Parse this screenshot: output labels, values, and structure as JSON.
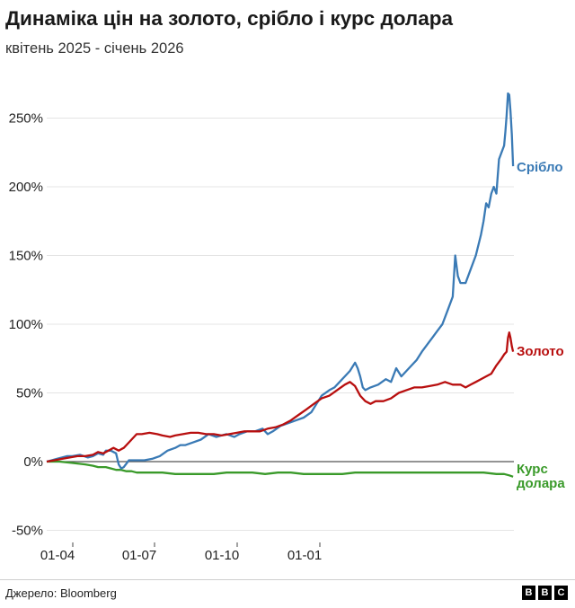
{
  "title": "Динаміка цін на золото, срібло і курс долара",
  "subtitle": "квітень 2025 - січень 2026",
  "source": "Джерело: Bloomberg",
  "brand": [
    "B",
    "B",
    "C"
  ],
  "colors": {
    "silver": "#3a7ab5",
    "gold": "#b80f0f",
    "usd": "#3a9a2a",
    "grid": "#e4e4e4",
    "zero": "#555555"
  },
  "chart_data": {
    "type": "line",
    "ylim": [
      -50,
      270
    ],
    "yticks": [
      -50,
      0,
      50,
      100,
      150,
      200,
      250
    ],
    "ytick_labels": [
      "-50%",
      "0%",
      "50%",
      "100%",
      "150%",
      "200%",
      "250%"
    ],
    "xticks": [
      "01-04",
      "01-07",
      "01-10",
      "01-01"
    ],
    "grid": true,
    "legend": "direct labels at line ends",
    "series": [
      {
        "name": "Срібло",
        "values": [
          [
            0,
            0
          ],
          [
            4,
            1
          ],
          [
            8,
            2
          ],
          [
            12,
            3
          ],
          [
            16,
            4
          ],
          [
            20,
            4
          ],
          [
            26,
            5
          ],
          [
            32,
            3
          ],
          [
            36,
            4
          ],
          [
            40,
            6
          ],
          [
            44,
            5
          ],
          [
            46,
            8
          ],
          [
            50,
            8
          ],
          [
            54,
            6
          ],
          [
            56,
            -2
          ],
          [
            58,
            -5
          ],
          [
            60,
            -4
          ],
          [
            64,
            1
          ],
          [
            70,
            1
          ],
          [
            76,
            1
          ],
          [
            82,
            2
          ],
          [
            88,
            4
          ],
          [
            94,
            8
          ],
          [
            100,
            10
          ],
          [
            104,
            12
          ],
          [
            108,
            12
          ],
          [
            114,
            14
          ],
          [
            120,
            16
          ],
          [
            126,
            20
          ],
          [
            132,
            18
          ],
          [
            136,
            19
          ],
          [
            140,
            20
          ],
          [
            146,
            18
          ],
          [
            150,
            20
          ],
          [
            156,
            22
          ],
          [
            162,
            22
          ],
          [
            168,
            24
          ],
          [
            172,
            20
          ],
          [
            176,
            22
          ],
          [
            182,
            26
          ],
          [
            188,
            28
          ],
          [
            194,
            30
          ],
          [
            200,
            32
          ],
          [
            206,
            36
          ],
          [
            210,
            42
          ],
          [
            214,
            48
          ],
          [
            220,
            52
          ],
          [
            224,
            54
          ],
          [
            228,
            58
          ],
          [
            232,
            62
          ],
          [
            236,
            66
          ],
          [
            240,
            72
          ],
          [
            242,
            68
          ],
          [
            244,
            62
          ],
          [
            246,
            54
          ],
          [
            248,
            52
          ],
          [
            252,
            54
          ],
          [
            258,
            56
          ],
          [
            264,
            60
          ],
          [
            268,
            58
          ],
          [
            272,
            68
          ],
          [
            276,
            62
          ],
          [
            280,
            66
          ],
          [
            284,
            70
          ],
          [
            288,
            74
          ],
          [
            292,
            80
          ],
          [
            296,
            85
          ],
          [
            300,
            90
          ],
          [
            304,
            95
          ],
          [
            308,
            100
          ],
          [
            312,
            110
          ],
          [
            316,
            120
          ],
          [
            318,
            150
          ],
          [
            320,
            135
          ],
          [
            322,
            130
          ],
          [
            326,
            130
          ],
          [
            330,
            140
          ],
          [
            334,
            150
          ],
          [
            338,
            165
          ],
          [
            340,
            175
          ],
          [
            342,
            188
          ],
          [
            344,
            185
          ],
          [
            346,
            195
          ],
          [
            348,
            200
          ],
          [
            350,
            195
          ],
          [
            352,
            220
          ],
          [
            354,
            225
          ],
          [
            356,
            230
          ],
          [
            357,
            240
          ],
          [
            358,
            252
          ],
          [
            359,
            268
          ],
          [
            360,
            267
          ],
          [
            361,
            255
          ],
          [
            362,
            238
          ],
          [
            363,
            215
          ]
        ]
      },
      {
        "name": "Золото",
        "values": [
          [
            0,
            0
          ],
          [
            6,
            1
          ],
          [
            12,
            2
          ],
          [
            18,
            3
          ],
          [
            24,
            4
          ],
          [
            30,
            4
          ],
          [
            36,
            5
          ],
          [
            40,
            7
          ],
          [
            44,
            6
          ],
          [
            48,
            8
          ],
          [
            50,
            9
          ],
          [
            52,
            10
          ],
          [
            54,
            9
          ],
          [
            56,
            8
          ],
          [
            58,
            9
          ],
          [
            60,
            10
          ],
          [
            62,
            12
          ],
          [
            64,
            14
          ],
          [
            66,
            16
          ],
          [
            68,
            18
          ],
          [
            70,
            20
          ],
          [
            74,
            20
          ],
          [
            80,
            21
          ],
          [
            86,
            20
          ],
          [
            90,
            19
          ],
          [
            96,
            18
          ],
          [
            100,
            19
          ],
          [
            106,
            20
          ],
          [
            112,
            21
          ],
          [
            118,
            21
          ],
          [
            124,
            20
          ],
          [
            130,
            20
          ],
          [
            136,
            19
          ],
          [
            142,
            20
          ],
          [
            148,
            21
          ],
          [
            154,
            22
          ],
          [
            160,
            22
          ],
          [
            166,
            22
          ],
          [
            172,
            24
          ],
          [
            178,
            25
          ],
          [
            184,
            27
          ],
          [
            190,
            30
          ],
          [
            196,
            34
          ],
          [
            202,
            38
          ],
          [
            208,
            42
          ],
          [
            214,
            46
          ],
          [
            220,
            48
          ],
          [
            226,
            52
          ],
          [
            232,
            56
          ],
          [
            236,
            58
          ],
          [
            240,
            55
          ],
          [
            244,
            48
          ],
          [
            248,
            44
          ],
          [
            252,
            42
          ],
          [
            256,
            44
          ],
          [
            262,
            44
          ],
          [
            268,
            46
          ],
          [
            274,
            50
          ],
          [
            280,
            52
          ],
          [
            286,
            54
          ],
          [
            292,
            54
          ],
          [
            298,
            55
          ],
          [
            304,
            56
          ],
          [
            310,
            58
          ],
          [
            316,
            56
          ],
          [
            322,
            56
          ],
          [
            326,
            54
          ],
          [
            330,
            56
          ],
          [
            334,
            58
          ],
          [
            338,
            60
          ],
          [
            342,
            62
          ],
          [
            346,
            64
          ],
          [
            350,
            70
          ],
          [
            354,
            75
          ],
          [
            356,
            78
          ],
          [
            358,
            80
          ],
          [
            359,
            90
          ],
          [
            360,
            94
          ],
          [
            361,
            90
          ],
          [
            362,
            84
          ],
          [
            363,
            80
          ]
        ]
      },
      {
        "name": "Курс\nдолара",
        "values": [
          [
            0,
            0
          ],
          [
            10,
            0
          ],
          [
            20,
            -1
          ],
          [
            30,
            -2
          ],
          [
            36,
            -3
          ],
          [
            40,
            -4
          ],
          [
            46,
            -4
          ],
          [
            50,
            -5
          ],
          [
            54,
            -6
          ],
          [
            58,
            -6
          ],
          [
            62,
            -7
          ],
          [
            66,
            -7
          ],
          [
            70,
            -8
          ],
          [
            80,
            -8
          ],
          [
            90,
            -8
          ],
          [
            100,
            -9
          ],
          [
            110,
            -9
          ],
          [
            120,
            -9
          ],
          [
            130,
            -9
          ],
          [
            140,
            -8
          ],
          [
            150,
            -8
          ],
          [
            160,
            -8
          ],
          [
            170,
            -9
          ],
          [
            180,
            -8
          ],
          [
            190,
            -8
          ],
          [
            200,
            -9
          ],
          [
            210,
            -9
          ],
          [
            220,
            -9
          ],
          [
            230,
            -9
          ],
          [
            240,
            -8
          ],
          [
            250,
            -8
          ],
          [
            260,
            -8
          ],
          [
            270,
            -8
          ],
          [
            280,
            -8
          ],
          [
            290,
            -8
          ],
          [
            300,
            -8
          ],
          [
            310,
            -8
          ],
          [
            320,
            -8
          ],
          [
            330,
            -8
          ],
          [
            340,
            -8
          ],
          [
            350,
            -9
          ],
          [
            356,
            -9
          ],
          [
            360,
            -10
          ],
          [
            363,
            -11
          ]
        ]
      }
    ],
    "x_tick_positions": [
      81,
      172,
      264,
      356
    ]
  }
}
